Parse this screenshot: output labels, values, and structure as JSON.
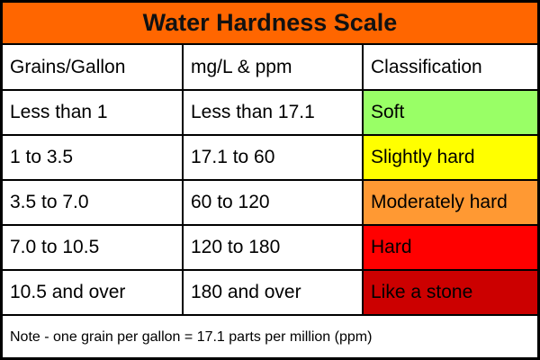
{
  "title": "Water Hardness Scale",
  "headers": [
    "Grains/Gallon",
    "mg/L & ppm",
    "Classification"
  ],
  "rows": [
    {
      "grains": "Less than 1",
      "mgl": "Less than 17.1",
      "class": "Soft",
      "color": "#99ff66"
    },
    {
      "grains": "1 to 3.5",
      "mgl": "17.1 to 60",
      "class": "Slightly hard",
      "color": "#ffff00"
    },
    {
      "grains": "3.5 to 7.0",
      "mgl": "60 to 120",
      "class": "Moderately hard",
      "color": "#ff9933"
    },
    {
      "grains": "7.0 to 10.5",
      "mgl": "120 to 180",
      "class": "Hard",
      "color": "#ff0000"
    },
    {
      "grains": "10.5 and over",
      "mgl": "180 and over",
      "class": "Like a stone",
      "color": "#cc0000"
    }
  ],
  "note": "Note - one grain per gallon = 17.1 parts per million (ppm)",
  "colors": {
    "title_bg": "#ff6600",
    "border": "#000000"
  }
}
